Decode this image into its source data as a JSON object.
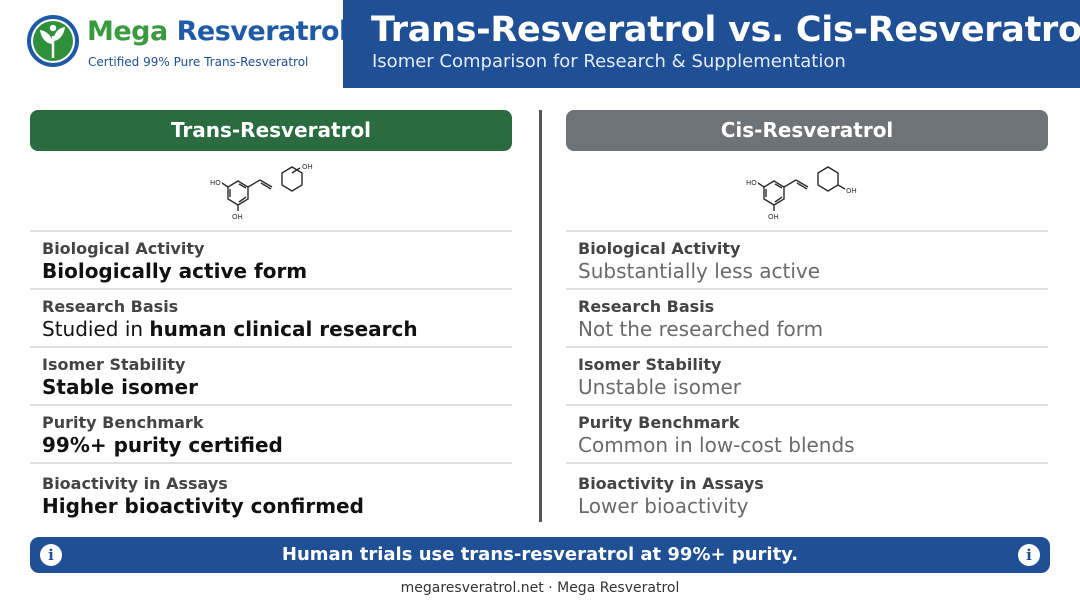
{
  "brand": {
    "name_part1": "Mega",
    "name_part2": "Resveratrol",
    "tagline": "Certified 99% Pure Trans-Resveratrol",
    "colors": {
      "green": "#3a9a3f",
      "blue": "#1f5aa6"
    }
  },
  "header": {
    "title": "Trans-Resveratrol vs. Cis-Resveratrol",
    "subtitle": "Isomer Comparison for Research & Supplementation",
    "band_color": "#1f4f94"
  },
  "left": {
    "heading": "Trans-Resveratrol",
    "color": "#2a6b40",
    "molecule_labels": {
      "top_oh": "OH",
      "left_ho": "HO",
      "bottom_oh": "OH"
    },
    "rows": [
      {
        "label": "Biological Activity",
        "value_plain": "",
        "value_bold": "Biologically active form"
      },
      {
        "label": "Research Basis",
        "value_plain": "Studied in ",
        "value_bold": "human clinical research"
      },
      {
        "label": "Isomer Stability",
        "value_plain": "",
        "value_bold": "Stable isomer"
      },
      {
        "label": "Purity Benchmark",
        "value_plain": "",
        "value_bold": "99%+ purity certified"
      },
      {
        "label": "Bioactivity in Assays",
        "value_plain": "",
        "value_bold": "Higher bioactivity confirmed"
      }
    ]
  },
  "right": {
    "heading": "Cis-Resveratrol",
    "color": "#6e7377",
    "molecule_labels": {
      "right_oh": "OH",
      "left_ho": "HO",
      "bottom_oh": "OH"
    },
    "rows": [
      {
        "label": "Biological Activity",
        "value": "Substantially less active"
      },
      {
        "label": "Research Basis",
        "value": "Not the researched form"
      },
      {
        "label": "Isomer Stability",
        "value": "Unstable isomer"
      },
      {
        "label": "Purity Benchmark",
        "value": "Common in low-cost blends"
      },
      {
        "label": "Bioactivity in Assays",
        "value": "Lower bioactivity"
      }
    ]
  },
  "banner": {
    "text": "Human trials use trans-resveratrol at 99%+ purity.",
    "icon_glyph": "i",
    "icon": "info-icon"
  },
  "footer": {
    "credit": "megaresveratrol.net · Mega Resveratrol"
  }
}
